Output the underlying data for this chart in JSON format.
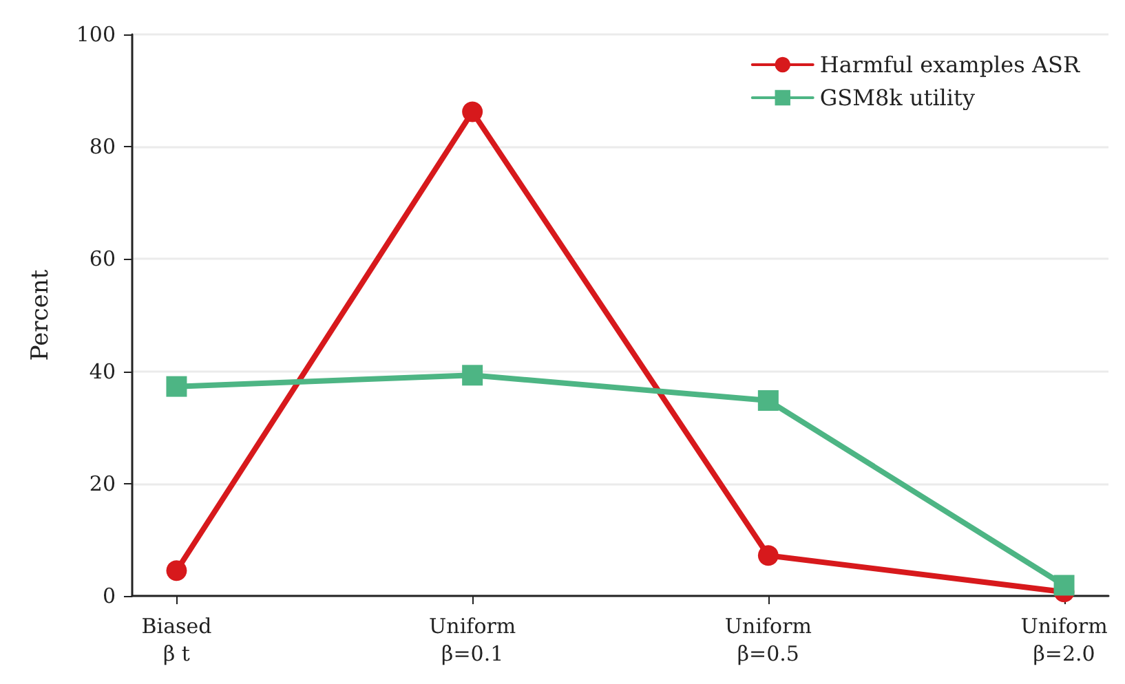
{
  "chart_data": {
    "type": "line",
    "ylabel": "Percent",
    "categories": [
      "Biased\nβ t",
      "Uniform\nβ=0.1",
      "Uniform\nβ=0.5",
      "Uniform\nβ=2.0"
    ],
    "ylim": [
      0,
      100
    ],
    "yticks": [
      0,
      20,
      40,
      60,
      80,
      100
    ],
    "grid": "y",
    "legend": "top right",
    "line_style": "solid",
    "series": [
      {
        "name": "Harmful examples ASR",
        "color": "#d7191c",
        "marker": "circle",
        "values": [
          4.5,
          86.2,
          7.2,
          0.7
        ]
      },
      {
        "name": "GSM8k utility",
        "color": "#4db584",
        "marker": "square",
        "values": [
          37.3,
          39.3,
          34.8,
          1.9
        ]
      }
    ]
  }
}
